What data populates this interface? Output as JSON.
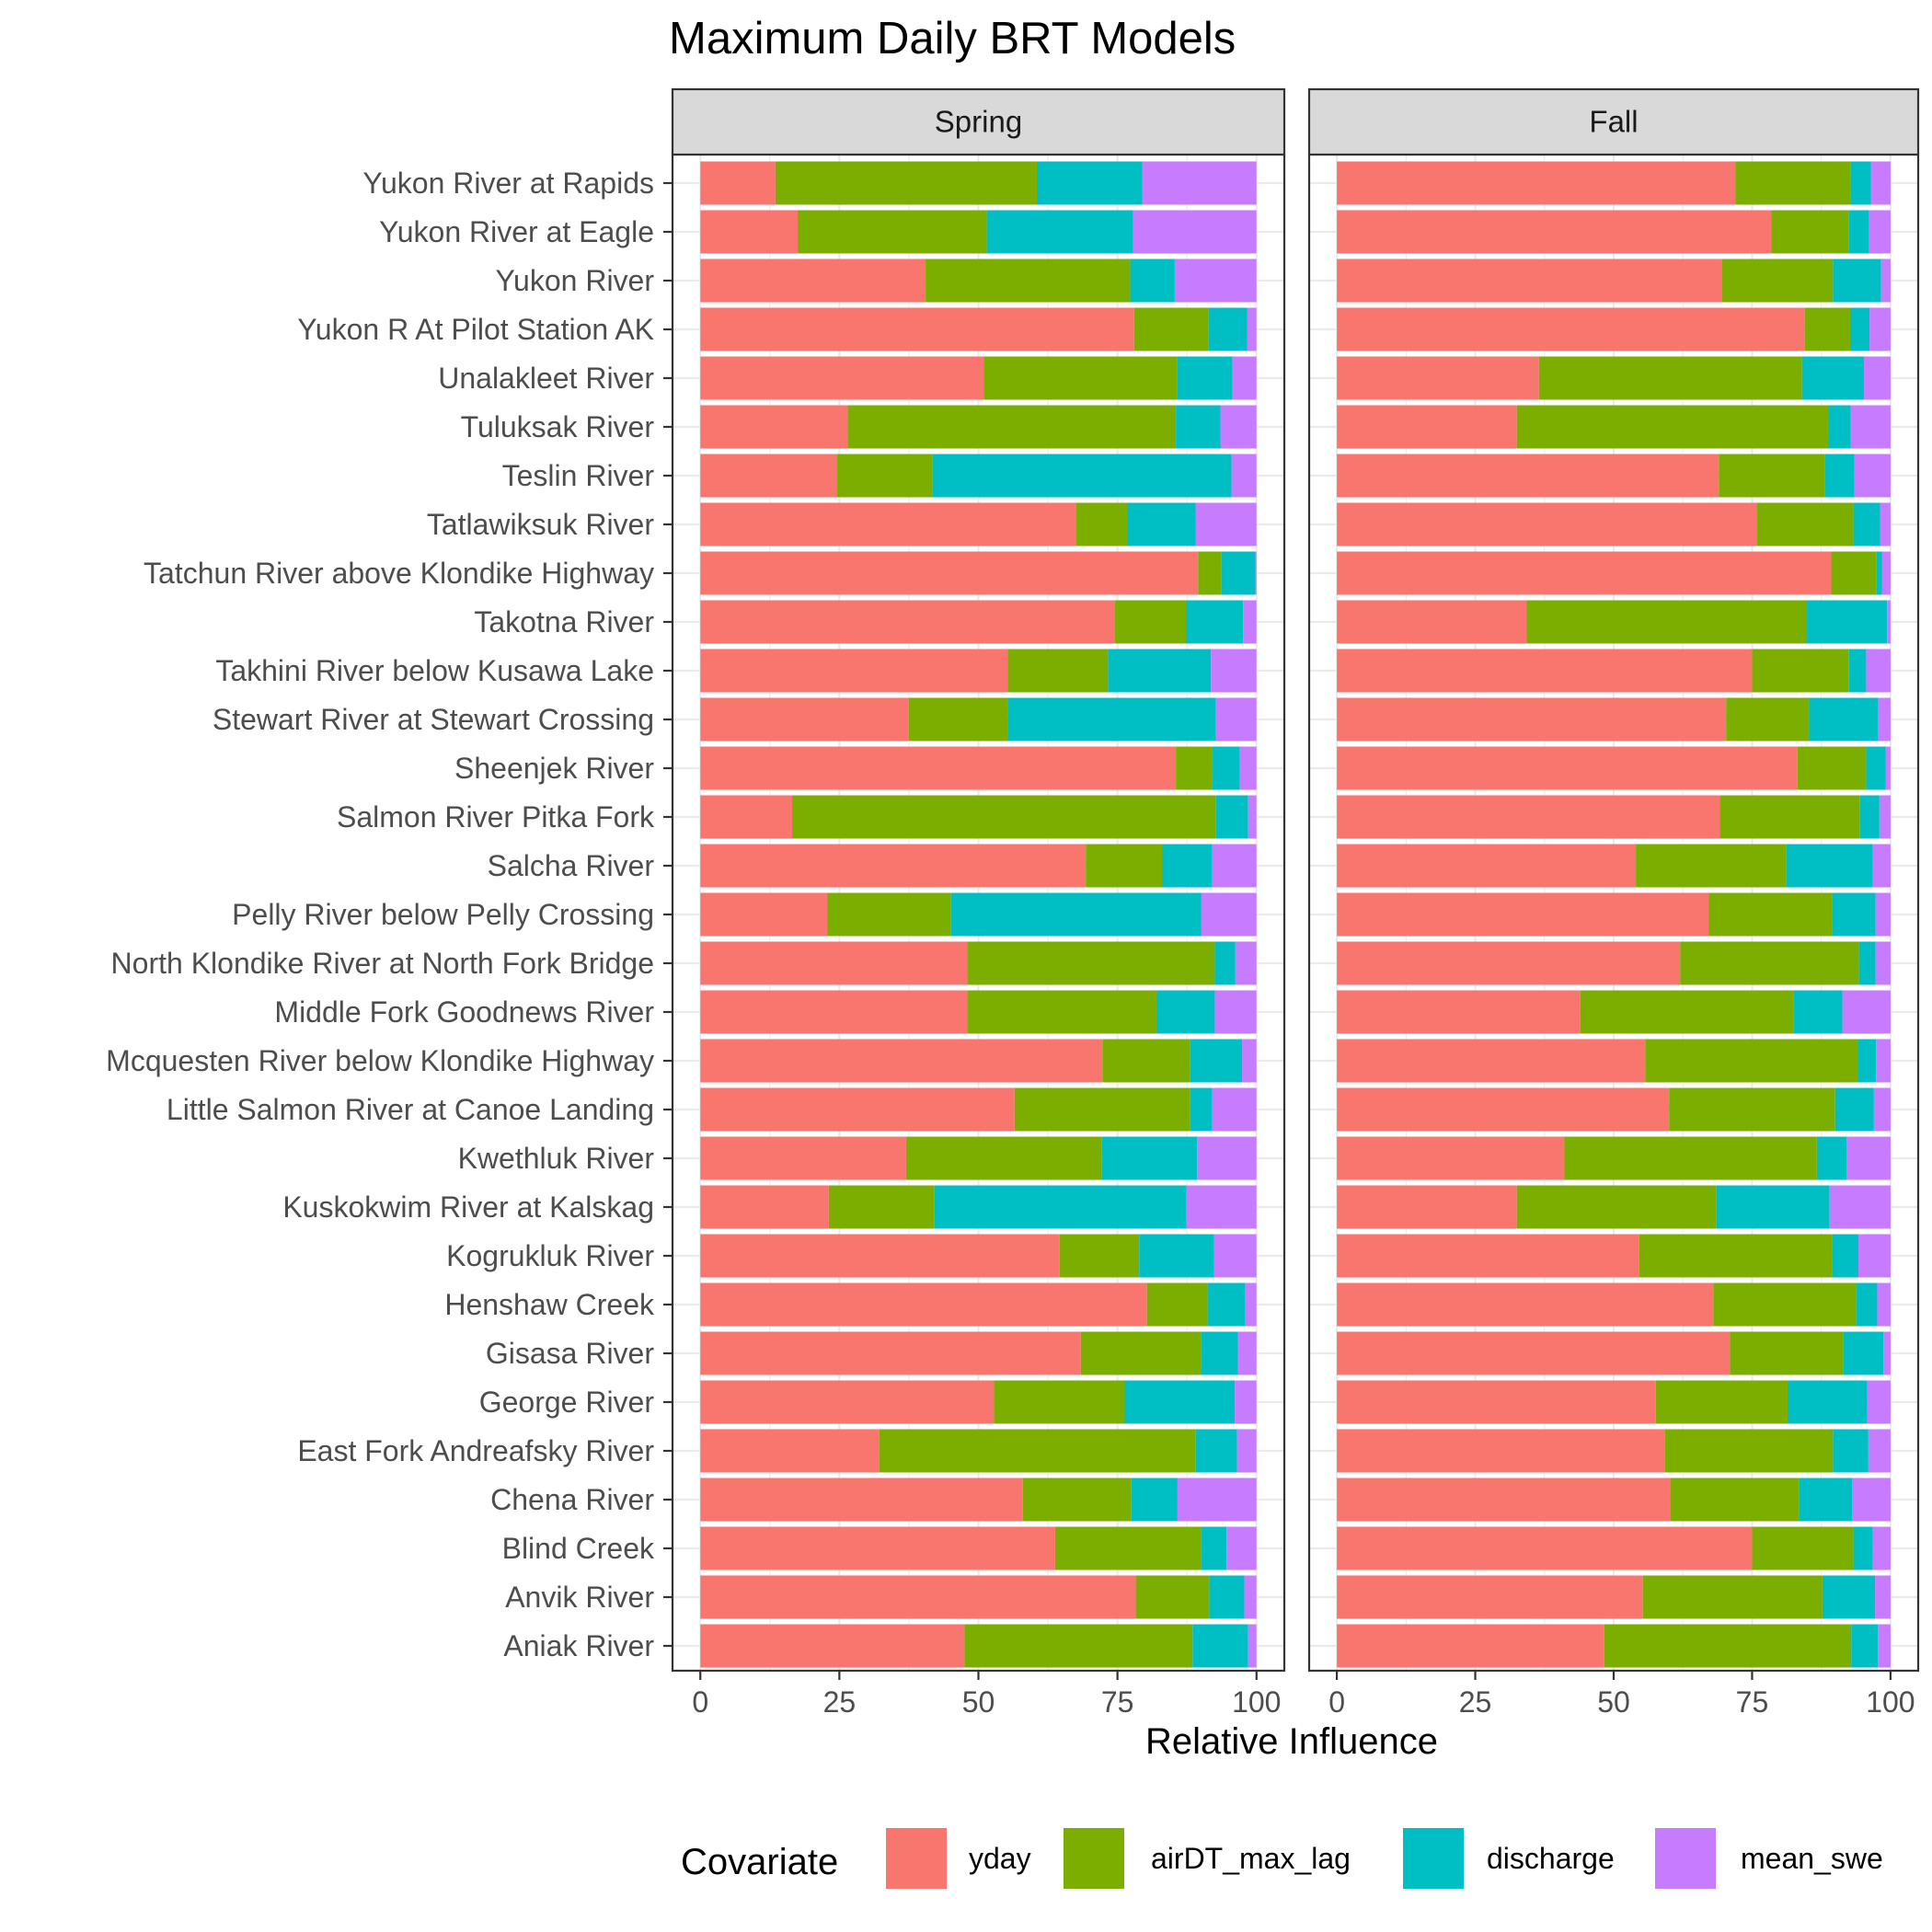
{
  "chart_data": {
    "type": "bar",
    "orientation": "horizontal",
    "stacked": true,
    "title": "Maximum Daily BRT Models",
    "xlabel": "Relative Influence",
    "ylabel": "",
    "xlim": [
      0,
      100
    ],
    "xticks": [
      "0",
      "25",
      "50",
      "75",
      "100"
    ],
    "grid": true,
    "legend": {
      "title": "Covariate",
      "position": "bottom",
      "entries": [
        {
          "name": "yday",
          "color": "#F8766D"
        },
        {
          "name": "airDT_max_lag",
          "color": "#7CAE00"
        },
        {
          "name": "discharge",
          "color": "#00BFC4"
        },
        {
          "name": "mean_swe",
          "color": "#C77CFF"
        }
      ]
    },
    "categories": [
      "Yukon River at Rapids",
      "Yukon River at Eagle",
      "Yukon River",
      "Yukon R At Pilot Station AK",
      "Unalakleet River",
      "Tuluksak River",
      "Teslin River",
      "Tatlawiksuk River",
      "Tatchun River above Klondike Highway",
      "Takotna River",
      "Takhini River below Kusawa Lake",
      "Stewart River at Stewart Crossing",
      "Sheenjek River",
      "Salmon River Pitka Fork",
      "Salcha River",
      "Pelly River below Pelly Crossing",
      "North Klondike River at North Fork Bridge",
      "Middle Fork Goodnews River",
      "Mcquesten River below Klondike Highway",
      "Little Salmon River at Canoe Landing",
      "Kwethluk River",
      "Kuskokwim River at Kalskag",
      "Kogrukluk River",
      "Henshaw Creek",
      "Gisasa River",
      "George River",
      "East Fork Andreafsky River",
      "Chena River",
      "Blind Creek",
      "Anvik River",
      "Aniak River"
    ],
    "panels": [
      {
        "name": "Spring",
        "series": [
          {
            "name": "yday",
            "values": [
              13.5,
              17.5,
              40.5,
              78,
              51,
              26.5,
              24.5,
              67.5,
              89.5,
              74.5,
              55.3,
              37.5,
              85.5,
              16.5,
              69.3,
              22.8,
              48,
              48,
              72.3,
              56.5,
              37,
              23.1,
              64.6,
              80.3,
              68.4,
              52.8,
              32.2,
              58,
              63.8,
              78.3,
              47.5
            ]
          },
          {
            "name": "airDT_max_lag",
            "values": [
              47,
              34,
              36.8,
              13.3,
              34.7,
              59,
              17.2,
              9.3,
              4.2,
              12.8,
              18,
              17.8,
              6.5,
              76.2,
              13.7,
              22.2,
              44.5,
              34,
              15.8,
              31.5,
              35.2,
              19,
              14.3,
              10.9,
              21.7,
              23.5,
              56.8,
              19.5,
              26.3,
              13.2,
              41
            ]
          },
          {
            "name": "discharge",
            "values": [
              19,
              26.3,
              8,
              7,
              10,
              8,
              53.8,
              12.3,
              6.1,
              10.3,
              18.5,
              37.4,
              5,
              5.8,
              9,
              45.1,
              3.7,
              10.5,
              9.3,
              4,
              17.1,
              45.3,
              13.5,
              6.8,
              6.6,
              19.8,
              7.5,
              8.3,
              4.5,
              6.3,
              10
            ]
          },
          {
            "name": "mean_swe",
            "values": [
              20.5,
              22.2,
              14.7,
              1.7,
              4.3,
              6.5,
              4.5,
              10.9,
              0.2,
              2.4,
              8.2,
              7.3,
              3,
              1.5,
              8,
              9.9,
              3.8,
              7.5,
              2.6,
              8,
              10.7,
              12.6,
              7.6,
              2,
              3.3,
              3.9,
              3.5,
              14.2,
              5.4,
              2.2,
              1.5
            ]
          }
        ]
      },
      {
        "name": "Fall",
        "series": [
          {
            "name": "yday",
            "values": [
              72,
              78.5,
              69.5,
              84.5,
              36.5,
              32.5,
              69,
              75.8,
              89.3,
              34.3,
              75,
              70.3,
              83.2,
              69.2,
              54,
              67.2,
              62,
              44,
              55.7,
              60,
              41.1,
              32.5,
              54.6,
              68,
              71,
              57.6,
              59.3,
              60.2,
              75,
              55.3,
              48.3
            ]
          },
          {
            "name": "airDT_max_lag",
            "values": [
              20.8,
              13.9,
              20.1,
              8.2,
              47.5,
              56.3,
              19.2,
              17.5,
              8.2,
              50.6,
              17.5,
              15,
              12.4,
              25.3,
              27.1,
              22.2,
              32.3,
              38.5,
              38.5,
              30,
              45.6,
              36,
              34.8,
              25.8,
              20.4,
              23.8,
              30.3,
              23.3,
              18.3,
              32.4,
              44.6
            ]
          },
          {
            "name": "discharge",
            "values": [
              3.7,
              3.7,
              8.7,
              3.5,
              11.2,
              4,
              5.3,
              4.8,
              1,
              14.5,
              3.1,
              12.5,
              3.5,
              3.5,
              15.7,
              7.9,
              3,
              8.8,
              3.2,
              7,
              5.4,
              20.5,
              4.8,
              3.8,
              7.3,
              14.4,
              6.4,
              9.6,
              3.5,
              9.5,
              4.8
            ]
          },
          {
            "name": "mean_swe",
            "values": [
              3.5,
              3.9,
              1.7,
              3.8,
              4.8,
              7.2,
              6.5,
              1.9,
              1.5,
              0.6,
              4.4,
              2.2,
              0.9,
              2,
              3.2,
              2.7,
              2.7,
              8.7,
              2.6,
              3,
              7.9,
              11,
              5.8,
              2.4,
              1.3,
              4.2,
              4,
              6.9,
              3.2,
              2.8,
              2.3
            ]
          }
        ]
      }
    ]
  }
}
